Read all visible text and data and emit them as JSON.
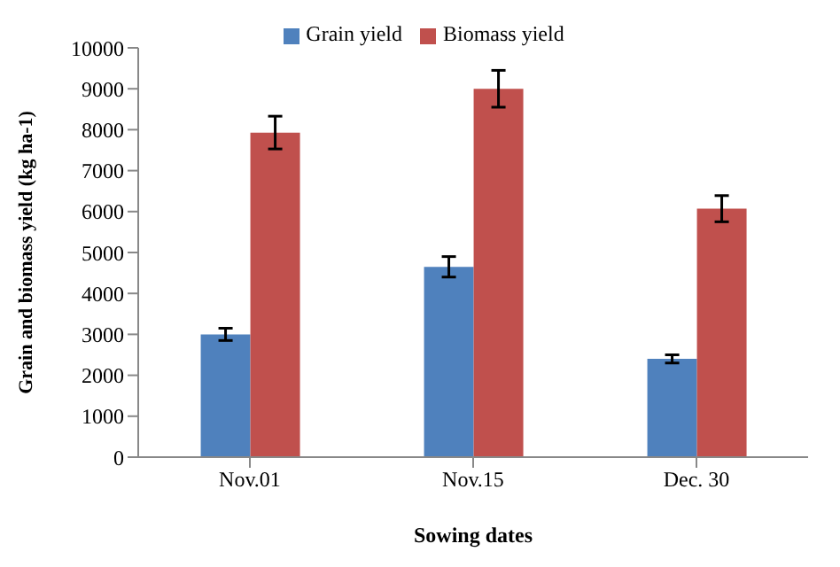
{
  "chart_data": {
    "type": "bar",
    "xlabel": "Sowing dates",
    "ylabel": "Grain and biomass yield (kg ha-1)",
    "categories": [
      "Nov.01",
      "Nov.15",
      "Dec. 30"
    ],
    "series": [
      {
        "name": "Grain yield",
        "color": "#4f81bd",
        "values": [
          3000,
          4650,
          2400
        ],
        "errors": [
          150,
          250,
          100
        ]
      },
      {
        "name": "Biomass yield",
        "color": "#c0504d",
        "values": [
          7930,
          9000,
          6070
        ],
        "errors": [
          400,
          450,
          320
        ]
      }
    ],
    "ylim": [
      0,
      10000
    ],
    "yticks": [
      0,
      1000,
      2000,
      3000,
      4000,
      5000,
      6000,
      7000,
      8000,
      9000,
      10000
    ],
    "grid": false,
    "legend": "top"
  }
}
